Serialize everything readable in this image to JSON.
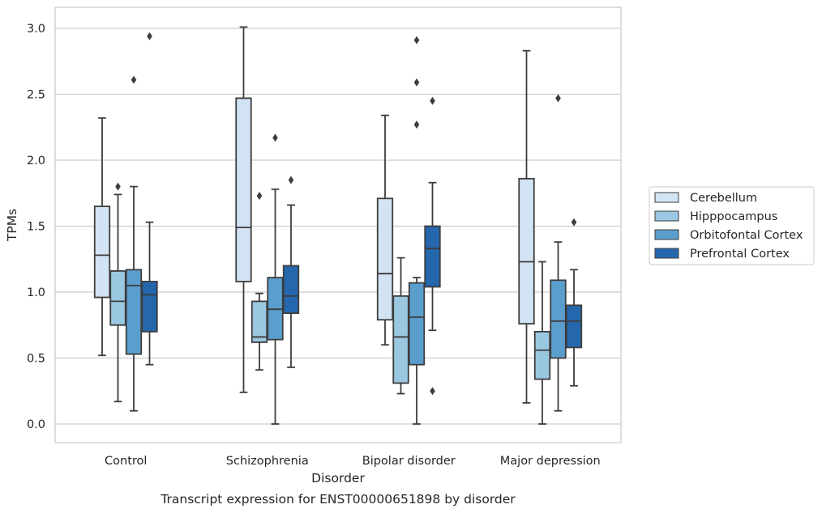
{
  "chart_data": {
    "type": "box",
    "title": "",
    "caption": "Transcript expression for ENST00000651898 by disorder",
    "xlabel": "Disorder",
    "ylabel": "TPMs",
    "ylim": [
      -0.15,
      3.17
    ],
    "yticks": [
      0.0,
      0.5,
      1.0,
      1.5,
      2.0,
      2.5,
      3.0
    ],
    "ytick_labels": [
      "0.0",
      "0.5",
      "1.0",
      "1.5",
      "2.0",
      "2.5",
      "3.0"
    ],
    "grid": "horizontal",
    "legend_position": "right",
    "categories": [
      "Control",
      "Schizophrenia",
      "Bipolar disorder",
      "Major depression"
    ],
    "series": [
      {
        "name": "Cerebellum",
        "color": "#d2e3f3",
        "boxes": [
          {
            "q1": 0.96,
            "median": 1.28,
            "q3": 1.65,
            "whislo": 0.52,
            "whishi": 2.32,
            "fliers": []
          },
          {
            "q1": 1.08,
            "median": 1.49,
            "q3": 2.47,
            "whislo": 0.24,
            "whishi": 3.01,
            "fliers": []
          },
          {
            "q1": 0.79,
            "median": 1.14,
            "q3": 1.71,
            "whislo": 0.6,
            "whishi": 2.34,
            "fliers": []
          },
          {
            "q1": 0.76,
            "median": 1.23,
            "q3": 1.86,
            "whislo": 0.16,
            "whishi": 2.83,
            "fliers": []
          }
        ]
      },
      {
        "name": "Hipppocampus",
        "color": "#9ac8e0",
        "boxes": [
          {
            "q1": 0.75,
            "median": 0.93,
            "q3": 1.16,
            "whislo": 0.17,
            "whishi": 1.74,
            "fliers": [
              1.8
            ]
          },
          {
            "q1": 0.62,
            "median": 0.66,
            "q3": 0.93,
            "whislo": 0.41,
            "whishi": 0.99,
            "fliers": [
              1.73
            ]
          },
          {
            "q1": 0.31,
            "median": 0.66,
            "q3": 0.97,
            "whislo": 0.23,
            "whishi": 1.26,
            "fliers": []
          },
          {
            "q1": 0.34,
            "median": 0.56,
            "q3": 0.7,
            "whislo": 0.0,
            "whishi": 1.23,
            "fliers": []
          }
        ]
      },
      {
        "name": "Orbitofontal Cortex",
        "color": "#5a9ecd",
        "boxes": [
          {
            "q1": 0.53,
            "median": 1.05,
            "q3": 1.17,
            "whislo": 0.1,
            "whishi": 1.8,
            "fliers": [
              2.61
            ]
          },
          {
            "q1": 0.64,
            "median": 0.87,
            "q3": 1.11,
            "whislo": 0.0,
            "whishi": 1.78,
            "fliers": [
              2.17
            ]
          },
          {
            "q1": 0.45,
            "median": 0.81,
            "q3": 1.07,
            "whislo": 0.0,
            "whishi": 1.11,
            "fliers": [
              2.27,
              2.59,
              2.91
            ]
          },
          {
            "q1": 0.5,
            "median": 0.78,
            "q3": 1.09,
            "whislo": 0.1,
            "whishi": 1.38,
            "fliers": [
              2.47
            ]
          }
        ]
      },
      {
        "name": "Prefrontal Cortex",
        "color": "#2567ac",
        "boxes": [
          {
            "q1": 0.7,
            "median": 0.98,
            "q3": 1.08,
            "whislo": 0.45,
            "whishi": 1.53,
            "fliers": [
              2.94
            ]
          },
          {
            "q1": 0.84,
            "median": 0.97,
            "q3": 1.2,
            "whislo": 0.43,
            "whishi": 1.66,
            "fliers": [
              1.85
            ]
          },
          {
            "q1": 1.04,
            "median": 1.33,
            "q3": 1.5,
            "whislo": 0.71,
            "whishi": 1.83,
            "fliers": [
              0.25,
              2.45
            ]
          },
          {
            "q1": 0.58,
            "median": 0.78,
            "q3": 0.9,
            "whislo": 0.29,
            "whishi": 1.17,
            "fliers": [
              1.53
            ]
          }
        ]
      }
    ]
  }
}
